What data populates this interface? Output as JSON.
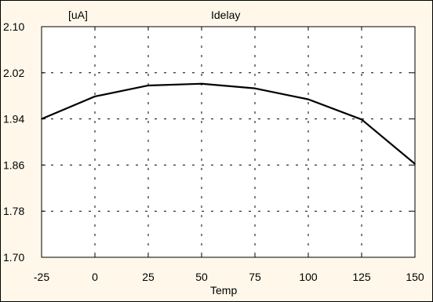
{
  "chart_data": {
    "type": "line",
    "title": "Idelay",
    "unit_label": "[uA]",
    "xlabel": "Temp",
    "ylabel": "",
    "x": [
      -25,
      0,
      25,
      50,
      75,
      100,
      125,
      150
    ],
    "x_tick_labels": [
      "-25",
      "0",
      "25",
      "50",
      "75",
      "100",
      "125",
      "150"
    ],
    "y_tick_labels": [
      "2.10",
      "2.02",
      "1.94",
      "1.86",
      "1.78",
      "1.70"
    ],
    "y_ticks": [
      2.1,
      2.02,
      1.94,
      1.86,
      1.78,
      1.7
    ],
    "xlim": [
      -25,
      150
    ],
    "ylim": [
      1.7,
      2.1
    ],
    "grid": true,
    "series": [
      {
        "values": [
          1.94,
          1.979,
          1.998,
          2.001,
          1.993,
          1.974,
          1.939,
          1.862
        ],
        "color": "#000000"
      }
    ],
    "colors": {
      "background": "#fff8ea",
      "plot_background": "#ffffff",
      "line": "#000000"
    }
  }
}
